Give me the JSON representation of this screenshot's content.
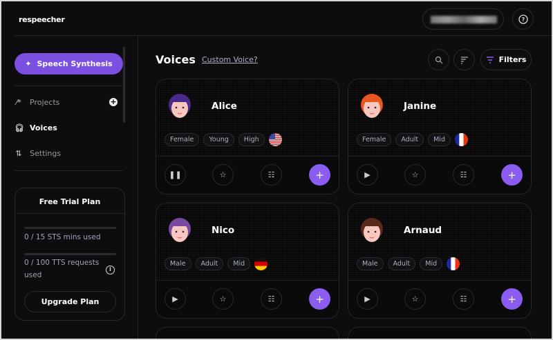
{
  "app": {
    "logo": "respeecher"
  },
  "header": {
    "help_icon": "question-circle-icon"
  },
  "sidebar": {
    "primary_button": "Speech Synthesis",
    "items": [
      {
        "label": "Projects",
        "icon": "magic-wand-icon",
        "active": false
      },
      {
        "label": "Voices",
        "icon": "headphones-icon",
        "active": true
      },
      {
        "label": "Settings",
        "icon": "sliders-icon",
        "active": false
      }
    ],
    "plan": {
      "title": "Free Trial Plan",
      "sts_text": "0 / 15 STS mins used",
      "sts_progress": 0,
      "tts_text_1": "0 / 100 TTS requests",
      "tts_text_2": "used",
      "tts_progress": 0,
      "upgrade": "Upgrade Plan"
    }
  },
  "main": {
    "title": "Voices",
    "custom_link": "Custom Voice?",
    "filters": "Filters",
    "voices": [
      {
        "name": "Alice",
        "tags": [
          "Female",
          "Young",
          "High"
        ],
        "flag": "us",
        "playing": true
      },
      {
        "name": "Janine",
        "tags": [
          "Female",
          "Adult",
          "Mid"
        ],
        "flag": "fr",
        "playing": false
      },
      {
        "name": "Nico",
        "tags": [
          "Male",
          "Adult",
          "Mid"
        ],
        "flag": "de",
        "playing": false
      },
      {
        "name": "Arnaud",
        "tags": [
          "Male",
          "Adult",
          "Mid"
        ],
        "flag": "fr",
        "playing": false
      }
    ]
  },
  "colors": {
    "accent": "#7b4fe0",
    "background": "#0d0c0f"
  }
}
